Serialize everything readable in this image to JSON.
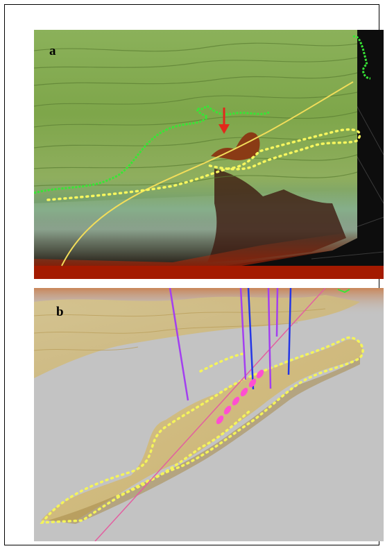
{
  "figure": {
    "panels": [
      {
        "label": "a"
      },
      {
        "label": "b"
      }
    ]
  },
  "colors": {
    "terrain_green": "#7fa84a",
    "terrain_yellow": "#cfc05a",
    "terrain_red": "#b01e00",
    "trace_green": "#39e23a",
    "trace_yellow": "#f4f45a",
    "marker_arrow": "#e2291b",
    "surface_sand": "#d7c27a",
    "background_gray": "#c3c3c3",
    "line_violet": "#a33ff0",
    "line_blue": "#2436e6",
    "marker_magenta": "#ff4fd1",
    "line_pink": "#e25fa0"
  }
}
